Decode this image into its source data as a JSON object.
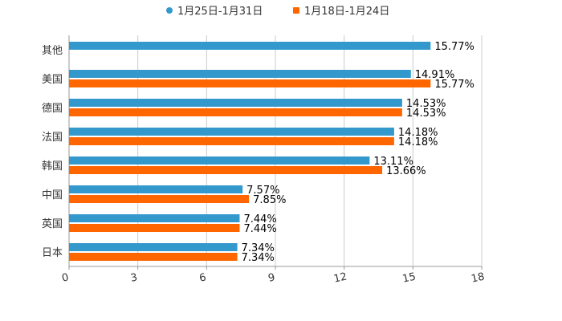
{
  "chart_data": {
    "type": "bar",
    "orientation": "horizontal",
    "categories": [
      "其他",
      "美国",
      "德国",
      "法国",
      "韩国",
      "中国",
      "英国",
      "日本"
    ],
    "series": [
      {
        "name": "1月25日-1月31日",
        "color": "#3399cc",
        "values": [
          15.77,
          14.91,
          14.53,
          14.18,
          13.11,
          7.57,
          7.44,
          7.34
        ],
        "labels": [
          "15.77%",
          "14.91%",
          "14.53%",
          "14.18%",
          "13.11%",
          "7.57%",
          "7.44%",
          "7.34%"
        ]
      },
      {
        "name": "1月18日-1月24日",
        "color": "#ff6600",
        "values": [
          null,
          15.77,
          14.53,
          14.18,
          13.66,
          7.85,
          7.44,
          7.34
        ],
        "labels": [
          null,
          "15.77%",
          "14.53%",
          "14.18%",
          "13.66%",
          "7.85%",
          "7.44%",
          "7.34%"
        ]
      }
    ],
    "xlim": [
      0,
      18
    ],
    "xticks": [
      "0",
      "3",
      "6",
      "9",
      "12",
      "15",
      "18"
    ],
    "legend": "top-center",
    "grid": true
  }
}
